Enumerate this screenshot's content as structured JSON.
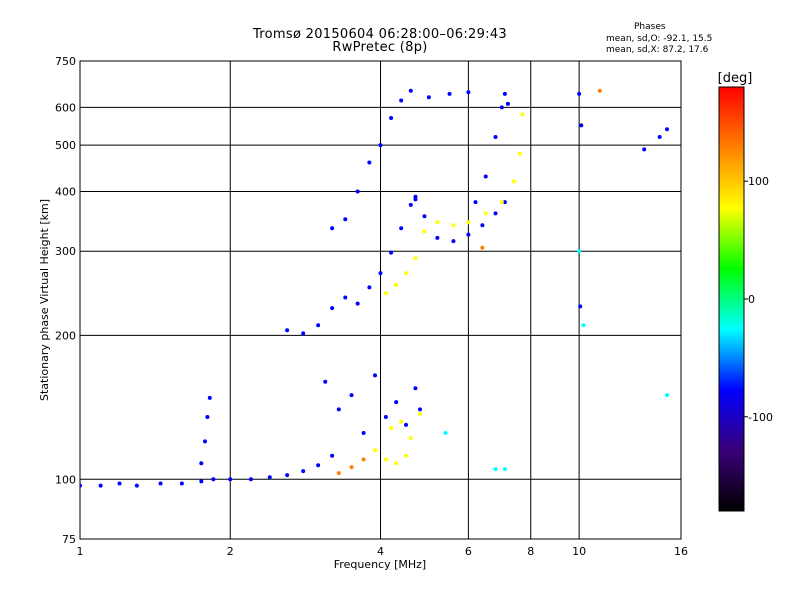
{
  "header": {
    "title": "Tromsø 20150604 06:28:00–06:29:43",
    "subtitle": "RwPretec (8p)",
    "phases_title": "Phases",
    "phase_o": "mean, sd,O: -92.1, 15.5",
    "phase_x": "mean, sd,X: 87.2, 17.6"
  },
  "chart_data": {
    "type": "scatter",
    "title": "Tromsø 20150604 06:28:00–06:29:43",
    "subtitle": "RwPretec (8p)",
    "xlabel": "Frequency [MHz]",
    "ylabel": "Stationary phase Virtual Height [km]",
    "x_scale": "log",
    "y_scale": "log",
    "xlim": [
      1,
      16
    ],
    "ylim": [
      75,
      750
    ],
    "x_ticks": [
      1,
      2,
      4,
      6,
      8,
      10,
      16
    ],
    "x_tick_labels": [
      "1",
      "2",
      "4",
      "6",
      "8",
      "10",
      "16"
    ],
    "y_ticks": [
      75,
      100,
      200,
      300,
      400,
      500,
      600,
      750
    ],
    "y_tick_labels": [
      "75",
      "100",
      "200",
      "300",
      "400",
      "500",
      "600",
      "750"
    ],
    "grid": true,
    "colorbar": {
      "label": "[deg]",
      "range": [
        -180,
        180
      ],
      "ticks": [
        -100,
        0,
        100
      ],
      "tick_labels": [
        "-100",
        "0",
        "100"
      ],
      "colors": [
        "#000000",
        "#3a007a",
        "#0000ff",
        "#00ffff",
        "#00ff00",
        "#ffff00",
        "#ff8000",
        "#ff0000"
      ]
    },
    "series": [
      {
        "color": "#0000ff",
        "x": [
          1.0,
          1.1,
          1.2,
          1.3,
          1.45,
          1.6,
          1.75,
          1.85,
          2.0,
          2.2,
          2.4,
          2.6,
          2.8,
          3.0,
          3.2
        ],
        "y": [
          97,
          97,
          98,
          97,
          98,
          98,
          99,
          100,
          100,
          100,
          101,
          102,
          104,
          107,
          112
        ]
      },
      {
        "color": "#0000ff",
        "x": [
          2.6,
          2.8,
          3.0,
          3.2,
          3.4,
          3.6,
          3.8,
          4.0,
          4.2,
          4.4,
          4.6,
          4.7
        ],
        "y": [
          205,
          202,
          210,
          228,
          240,
          233,
          252,
          270,
          298,
          335,
          375,
          390
        ]
      },
      {
        "color": "#0000ff",
        "x": [
          4.7,
          4.9,
          5.2,
          5.6,
          6.0,
          6.4,
          6.8,
          7.1
        ],
        "y": [
          385,
          355,
          320,
          315,
          325,
          340,
          360,
          380
        ]
      },
      {
        "color": "#0000ff",
        "x": [
          3.2,
          3.4,
          3.6,
          3.8,
          4.0,
          4.2,
          4.4,
          4.6,
          5.0,
          5.5,
          6.0
        ],
        "y": [
          335,
          350,
          400,
          460,
          500,
          570,
          620,
          650,
          630,
          640,
          645
        ]
      },
      {
        "color": "#0000ff",
        "x": [
          6.2,
          6.5,
          6.8,
          7.0,
          7.1,
          7.2
        ],
        "y": [
          380,
          430,
          520,
          600,
          640,
          610
        ]
      },
      {
        "color": "#0000ff",
        "x": [
          3.1,
          3.3,
          3.5,
          3.7,
          3.9,
          4.1,
          4.3,
          4.5,
          4.7,
          4.8
        ],
        "y": [
          160,
          140,
          150,
          125,
          165,
          135,
          145,
          130,
          155,
          140
        ]
      },
      {
        "color": "#0000ff",
        "x": [
          1.75,
          1.78,
          1.8,
          1.82
        ],
        "y": [
          108,
          120,
          135,
          148
        ]
      },
      {
        "color": "#ffff00",
        "x": [
          4.1,
          4.3,
          4.5,
          4.7,
          4.9,
          5.2,
          5.6,
          6.0,
          6.5,
          7.0,
          7.4,
          7.6,
          7.7
        ],
        "y": [
          245,
          255,
          270,
          290,
          330,
          345,
          340,
          345,
          360,
          380,
          420,
          480,
          580
        ]
      },
      {
        "color": "#ffff00",
        "x": [
          3.9,
          4.1,
          4.3,
          4.5
        ],
        "y": [
          115,
          110,
          108,
          112
        ]
      },
      {
        "color": "#ffff00",
        "x": [
          4.2,
          4.4,
          4.6,
          4.8
        ],
        "y": [
          128,
          132,
          122,
          137
        ]
      },
      {
        "color": "#ff8000",
        "x": [
          3.3,
          3.5,
          3.7,
          6.4,
          11.0
        ],
        "y": [
          103,
          106,
          110,
          305,
          650
        ]
      },
      {
        "color": "#00ffff",
        "x": [
          5.4,
          6.8,
          7.1,
          10.0,
          10.2,
          15.0
        ],
        "y": [
          125,
          105,
          105,
          300,
          210,
          150
        ]
      },
      {
        "color": "#0000ff",
        "x": [
          10.0,
          10.1,
          10.05,
          13.5,
          14.5,
          15.0
        ],
        "y": [
          640,
          550,
          230,
          490,
          520,
          540
        ]
      }
    ]
  }
}
